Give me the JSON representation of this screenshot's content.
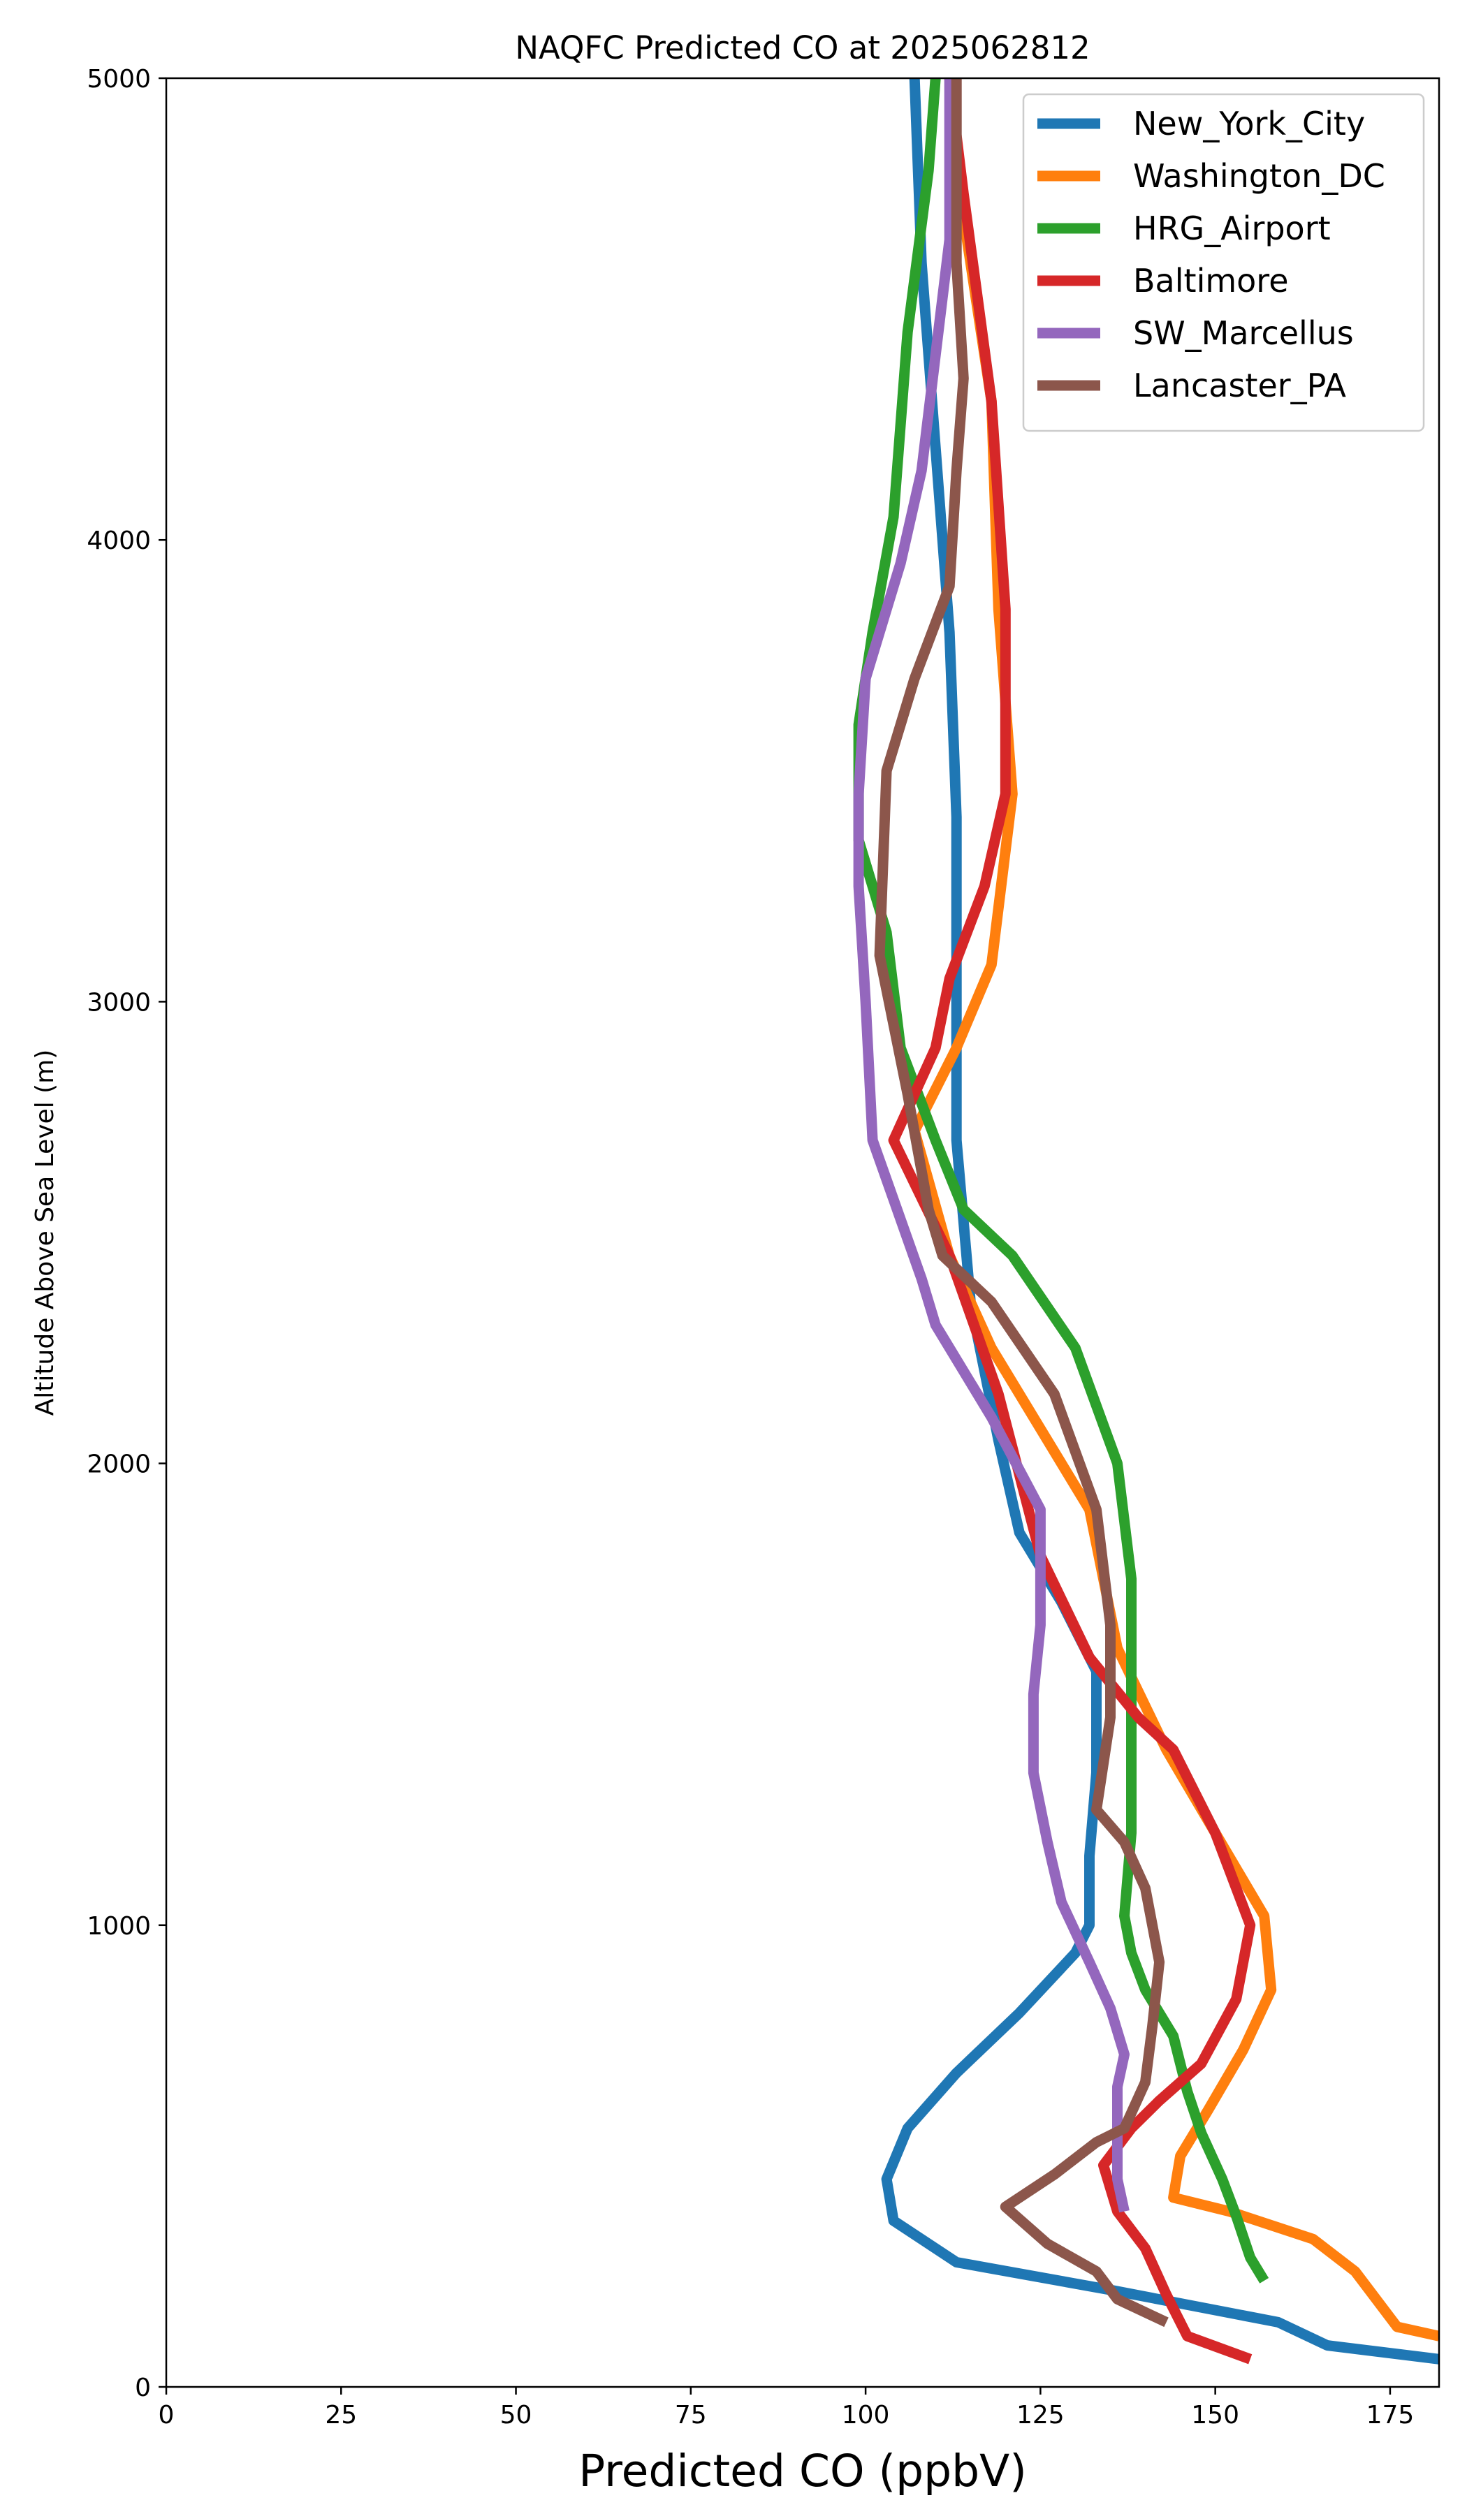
{
  "chart_data": {
    "type": "line",
    "title": "NAQFC Predicted CO at 2025062812",
    "xlabel": "Predicted CO (ppbV)",
    "ylabel": "Altitude Above Sea Level (m)",
    "xlim": [
      0,
      182
    ],
    "ylim": [
      0,
      5000
    ],
    "xticks": [
      0,
      25,
      50,
      75,
      100,
      125,
      150,
      175
    ],
    "yticks": [
      0,
      1000,
      2000,
      3000,
      4000,
      5000
    ],
    "grid": false,
    "legend_position": "top-right",
    "series": [
      {
        "name": "New_York_City",
        "color": "#1f77b4",
        "points": [
          [
            182,
            60
          ],
          [
            166,
            90
          ],
          [
            159,
            140
          ],
          [
            135,
            210
          ],
          [
            113,
            270
          ],
          [
            104,
            360
          ],
          [
            103,
            450
          ],
          [
            106,
            560
          ],
          [
            113,
            680
          ],
          [
            122,
            810
          ],
          [
            130,
            940
          ],
          [
            132,
            1000
          ],
          [
            132,
            1150
          ],
          [
            133,
            1330
          ],
          [
            133,
            1550
          ],
          [
            128,
            1700
          ],
          [
            122,
            1850
          ],
          [
            119,
            2050
          ],
          [
            115,
            2350
          ],
          [
            113,
            2700
          ],
          [
            113,
            3000
          ],
          [
            113,
            3400
          ],
          [
            112,
            3800
          ],
          [
            110,
            4200
          ],
          [
            108,
            4600
          ],
          [
            107,
            5000
          ]
        ]
      },
      {
        "name": "Washington_DC",
        "color": "#ff7f0e",
        "points": [
          [
            182,
            110
          ],
          [
            176,
            130
          ],
          [
            170,
            250
          ],
          [
            164,
            320
          ],
          [
            152,
            380
          ],
          [
            144,
            410
          ],
          [
            145,
            500
          ],
          [
            149,
            600
          ],
          [
            154,
            730
          ],
          [
            158,
            860
          ],
          [
            157,
            1020
          ],
          [
            150,
            1200
          ],
          [
            143,
            1380
          ],
          [
            136,
            1600
          ],
          [
            132,
            1900
          ],
          [
            126,
            2050
          ],
          [
            118,
            2250
          ],
          [
            112,
            2450
          ],
          [
            107,
            2720
          ],
          [
            113,
            2900
          ],
          [
            118,
            3080
          ],
          [
            121,
            3450
          ],
          [
            119,
            3850
          ],
          [
            118,
            4300
          ],
          [
            114,
            4700
          ],
          [
            112,
            5000
          ]
        ]
      },
      {
        "name": "HRG_Airport",
        "color": "#2ca02c",
        "points": [
          [
            157,
            230
          ],
          [
            155,
            280
          ],
          [
            153,
            370
          ],
          [
            151,
            450
          ],
          [
            148,
            550
          ],
          [
            146,
            640
          ],
          [
            144,
            760
          ],
          [
            140,
            860
          ],
          [
            138,
            940
          ],
          [
            137,
            1020
          ],
          [
            138,
            1200
          ],
          [
            138,
            1400
          ],
          [
            138,
            1750
          ],
          [
            136,
            2000
          ],
          [
            130,
            2250
          ],
          [
            121,
            2450
          ],
          [
            114,
            2550
          ],
          [
            110,
            2700
          ],
          [
            105,
            2900
          ],
          [
            103,
            3150
          ],
          [
            99,
            3350
          ],
          [
            99,
            3600
          ],
          [
            101,
            3800
          ],
          [
            104,
            4050
          ],
          [
            106,
            4450
          ],
          [
            109,
            4800
          ],
          [
            110,
            5000
          ]
        ]
      },
      {
        "name": "Baltimore",
        "color": "#d62728",
        "points": [
          [
            155,
            60
          ],
          [
            146,
            110
          ],
          [
            143,
            200
          ],
          [
            140,
            300
          ],
          [
            136,
            380
          ],
          [
            134,
            480
          ],
          [
            138,
            560
          ],
          [
            142,
            620
          ],
          [
            148,
            700
          ],
          [
            153,
            840
          ],
          [
            155,
            1000
          ],
          [
            150,
            1200
          ],
          [
            144,
            1380
          ],
          [
            139,
            1450
          ],
          [
            132,
            1580
          ],
          [
            125,
            1800
          ],
          [
            119,
            2150
          ],
          [
            112,
            2450
          ],
          [
            104,
            2700
          ],
          [
            110,
            2900
          ],
          [
            112,
            3050
          ],
          [
            117,
            3250
          ],
          [
            120,
            3450
          ],
          [
            120,
            3850
          ],
          [
            118,
            4300
          ],
          [
            114,
            4750
          ],
          [
            112,
            5000
          ]
        ]
      },
      {
        "name": "SW_Marcellus",
        "color": "#9467bd",
        "points": [
          [
            137,
            380
          ],
          [
            136,
            450
          ],
          [
            136,
            550
          ],
          [
            136,
            650
          ],
          [
            137,
            720
          ],
          [
            135,
            820
          ],
          [
            132,
            920
          ],
          [
            128,
            1050
          ],
          [
            126,
            1180
          ],
          [
            124,
            1330
          ],
          [
            124,
            1500
          ],
          [
            125,
            1650
          ],
          [
            125,
            1900
          ],
          [
            118,
            2100
          ],
          [
            110,
            2300
          ],
          [
            108,
            2400
          ],
          [
            101,
            2700
          ],
          [
            100,
            3000
          ],
          [
            99,
            3250
          ],
          [
            99,
            3450
          ],
          [
            100,
            3700
          ],
          [
            105,
            3950
          ],
          [
            108,
            4150
          ],
          [
            110,
            4400
          ],
          [
            112,
            4650
          ],
          [
            112,
            5000
          ]
        ]
      },
      {
        "name": "Lancaster_PA",
        "color": "#8c564b",
        "points": [
          [
            143,
            140
          ],
          [
            136,
            190
          ],
          [
            133,
            250
          ],
          [
            126,
            310
          ],
          [
            120,
            390
          ],
          [
            127,
            460
          ],
          [
            133,
            530
          ],
          [
            137,
            560
          ],
          [
            140,
            660
          ],
          [
            141,
            780
          ],
          [
            142,
            920
          ],
          [
            140,
            1080
          ],
          [
            137,
            1180
          ],
          [
            133,
            1250
          ],
          [
            135,
            1450
          ],
          [
            135,
            1650
          ],
          [
            133,
            1900
          ],
          [
            127,
            2150
          ],
          [
            118,
            2350
          ],
          [
            111,
            2450
          ],
          [
            109,
            2550
          ],
          [
            106,
            2800
          ],
          [
            102,
            3100
          ],
          [
            103,
            3500
          ],
          [
            107,
            3700
          ],
          [
            112,
            3900
          ],
          [
            113,
            4150
          ],
          [
            114,
            4350
          ],
          [
            113,
            4600
          ],
          [
            113,
            4800
          ],
          [
            113,
            5000
          ]
        ]
      }
    ]
  }
}
